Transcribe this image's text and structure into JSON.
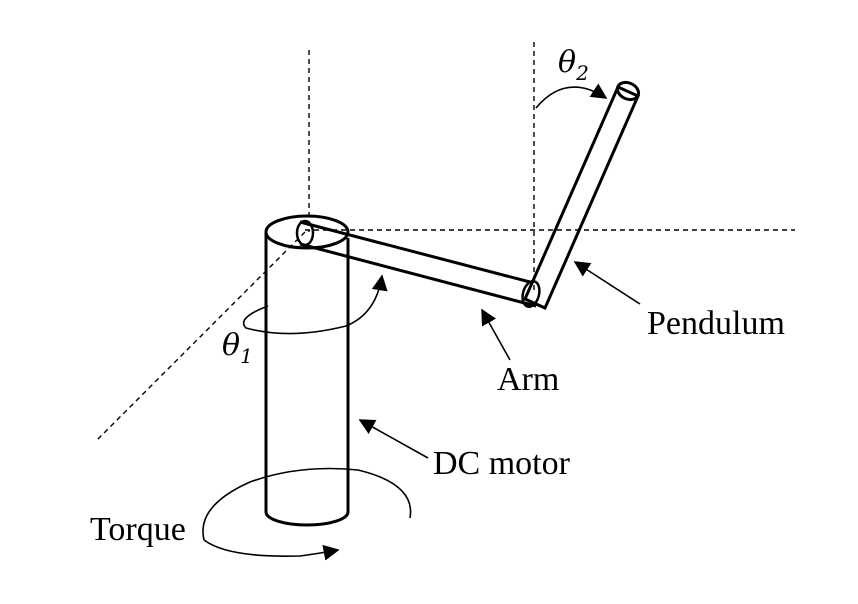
{
  "labels": {
    "theta1": {
      "symbol": "θ",
      "subscript": "1"
    },
    "theta2": {
      "symbol": "θ",
      "subscript": "2"
    },
    "pendulum": "Pendulum",
    "arm": "Arm",
    "dc_motor": "DC motor",
    "torque": "Torque"
  },
  "colors": {
    "stroke": "#000000",
    "background": "#ffffff"
  }
}
